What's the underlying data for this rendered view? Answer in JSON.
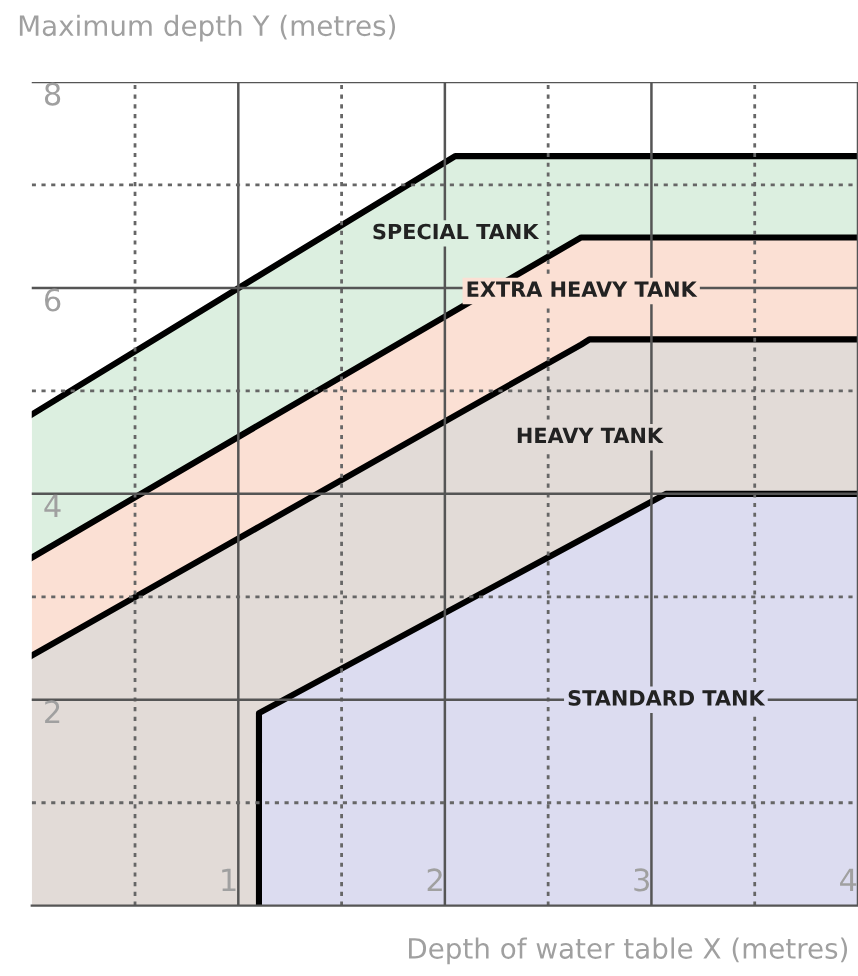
{
  "chart_data": {
    "type": "area",
    "ylabel": "Maximum depth Y (metres)",
    "xlabel": "Depth of water table X (metres)",
    "xlim": [
      0,
      4
    ],
    "ylim": [
      0,
      8
    ],
    "xticks": [
      1,
      2,
      3,
      4
    ],
    "yticks": [
      2,
      4,
      6,
      8
    ],
    "grid": true,
    "legend": false,
    "series": [
      {
        "color": "#dcefe0",
        "x": [
          0,
          1.1,
          2.05,
          2.66,
          2.7,
          3.07,
          4
        ],
        "values": [
          4.77,
          6.12,
          7.28,
          7.28,
          7.28,
          7.28,
          7.28
        ]
      },
      {
        "color": "#fbe0d4",
        "x": [
          0,
          1.1,
          2.05,
          2.66,
          2.7,
          3.07,
          4
        ],
        "values": [
          3.38,
          4.67,
          5.78,
          6.49,
          6.49,
          6.49,
          6.49
        ]
      },
      {
        "color": "#e2dbd7",
        "x": [
          0,
          1.1,
          2.05,
          2.66,
          2.7,
          3.07,
          4
        ],
        "values": [
          2.43,
          3.68,
          4.76,
          5.45,
          5.5,
          5.5,
          5.5
        ]
      },
      {
        "color": "#dcdcf0",
        "x": [
          1.1,
          1.1,
          3.07,
          4
        ],
        "values": [
          0,
          1.87,
          4,
          4
        ]
      }
    ],
    "annotations": [
      "SPECIAL TANK",
      "EXTRA HEAVY TANK",
      "HEAVY TANK",
      "STANDARD TANK"
    ]
  }
}
